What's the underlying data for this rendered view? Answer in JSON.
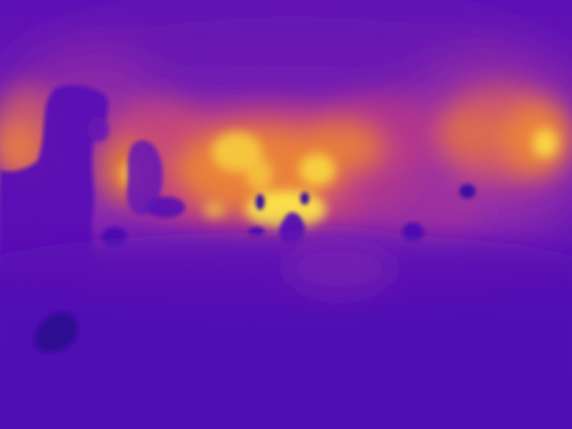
{
  "image": {
    "kind": "heatmap-style depth/intensity visualization",
    "colormap": "plasma",
    "colors": {
      "background_dark": "#3b0aa8",
      "background_mid": "#5a11b8",
      "purple_glow": "#8a2bb0",
      "magenta": "#b3378f",
      "orange": "#e7773a",
      "yellow_hot": "#f6d43c",
      "yellow_bright": "#fff04a",
      "deep_blob": "#2d0a8f"
    }
  }
}
